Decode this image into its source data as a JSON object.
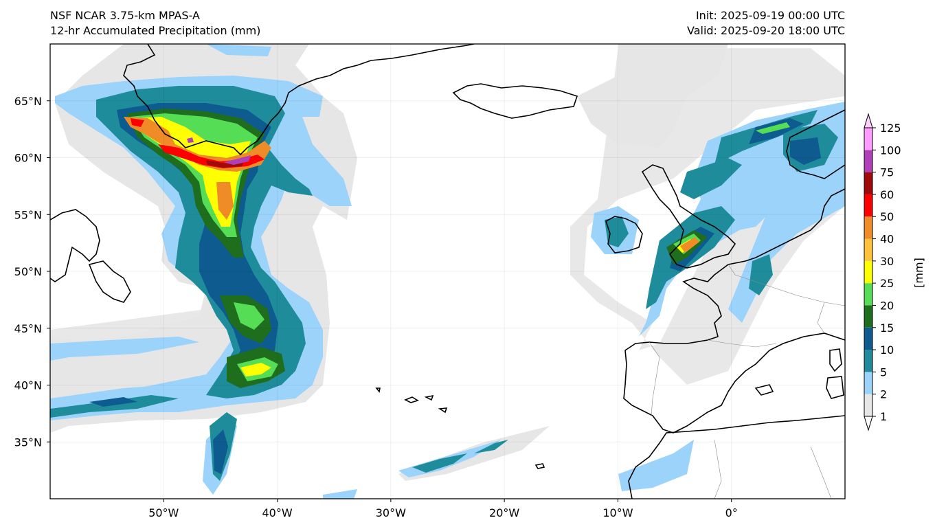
{
  "header": {
    "left_line1": "NSF NCAR 3.75-km MPAS-A",
    "left_line2": "12-hr Accumulated Precipitation (mm)",
    "right_line1": "Init: 2025-09-19 00:00 UTC",
    "right_line2": "Valid: 2025-09-20 18:00 UTC"
  },
  "map": {
    "lon_range": [
      -60,
      10
    ],
    "lat_range": [
      30,
      70
    ],
    "lat_ticks": [
      {
        "value": 65,
        "label": "65°N"
      },
      {
        "value": 60,
        "label": "60°N"
      },
      {
        "value": 55,
        "label": "55°N"
      },
      {
        "value": 50,
        "label": "50°N"
      },
      {
        "value": 45,
        "label": "45°N"
      },
      {
        "value": 40,
        "label": "40°N"
      },
      {
        "value": 35,
        "label": "35°N"
      }
    ],
    "lon_ticks": [
      {
        "value": -50,
        "label": "50°W"
      },
      {
        "value": -40,
        "label": "40°W"
      },
      {
        "value": -30,
        "label": "30°W"
      },
      {
        "value": -20,
        "label": "20°W"
      },
      {
        "value": -10,
        "label": "10°W"
      },
      {
        "value": 0,
        "label": "0°"
      }
    ],
    "gridlines": true
  },
  "colorbar": {
    "unit_label": "[mm]",
    "levels": [
      "1",
      "2",
      "5",
      "10",
      "15",
      "20",
      "25",
      "30",
      "40",
      "50",
      "60",
      "75",
      "100",
      "125"
    ],
    "colors": [
      "#e6e6e6",
      "#9cd3fb",
      "#1f8c9c",
      "#0d5b8f",
      "#1e6e1e",
      "#55de55",
      "#ffff00",
      "#ffc23a",
      "#f08c28",
      "#ff0000",
      "#a00a0a",
      "#b040b8",
      "#ff9cff"
    ],
    "extend": "both"
  }
}
